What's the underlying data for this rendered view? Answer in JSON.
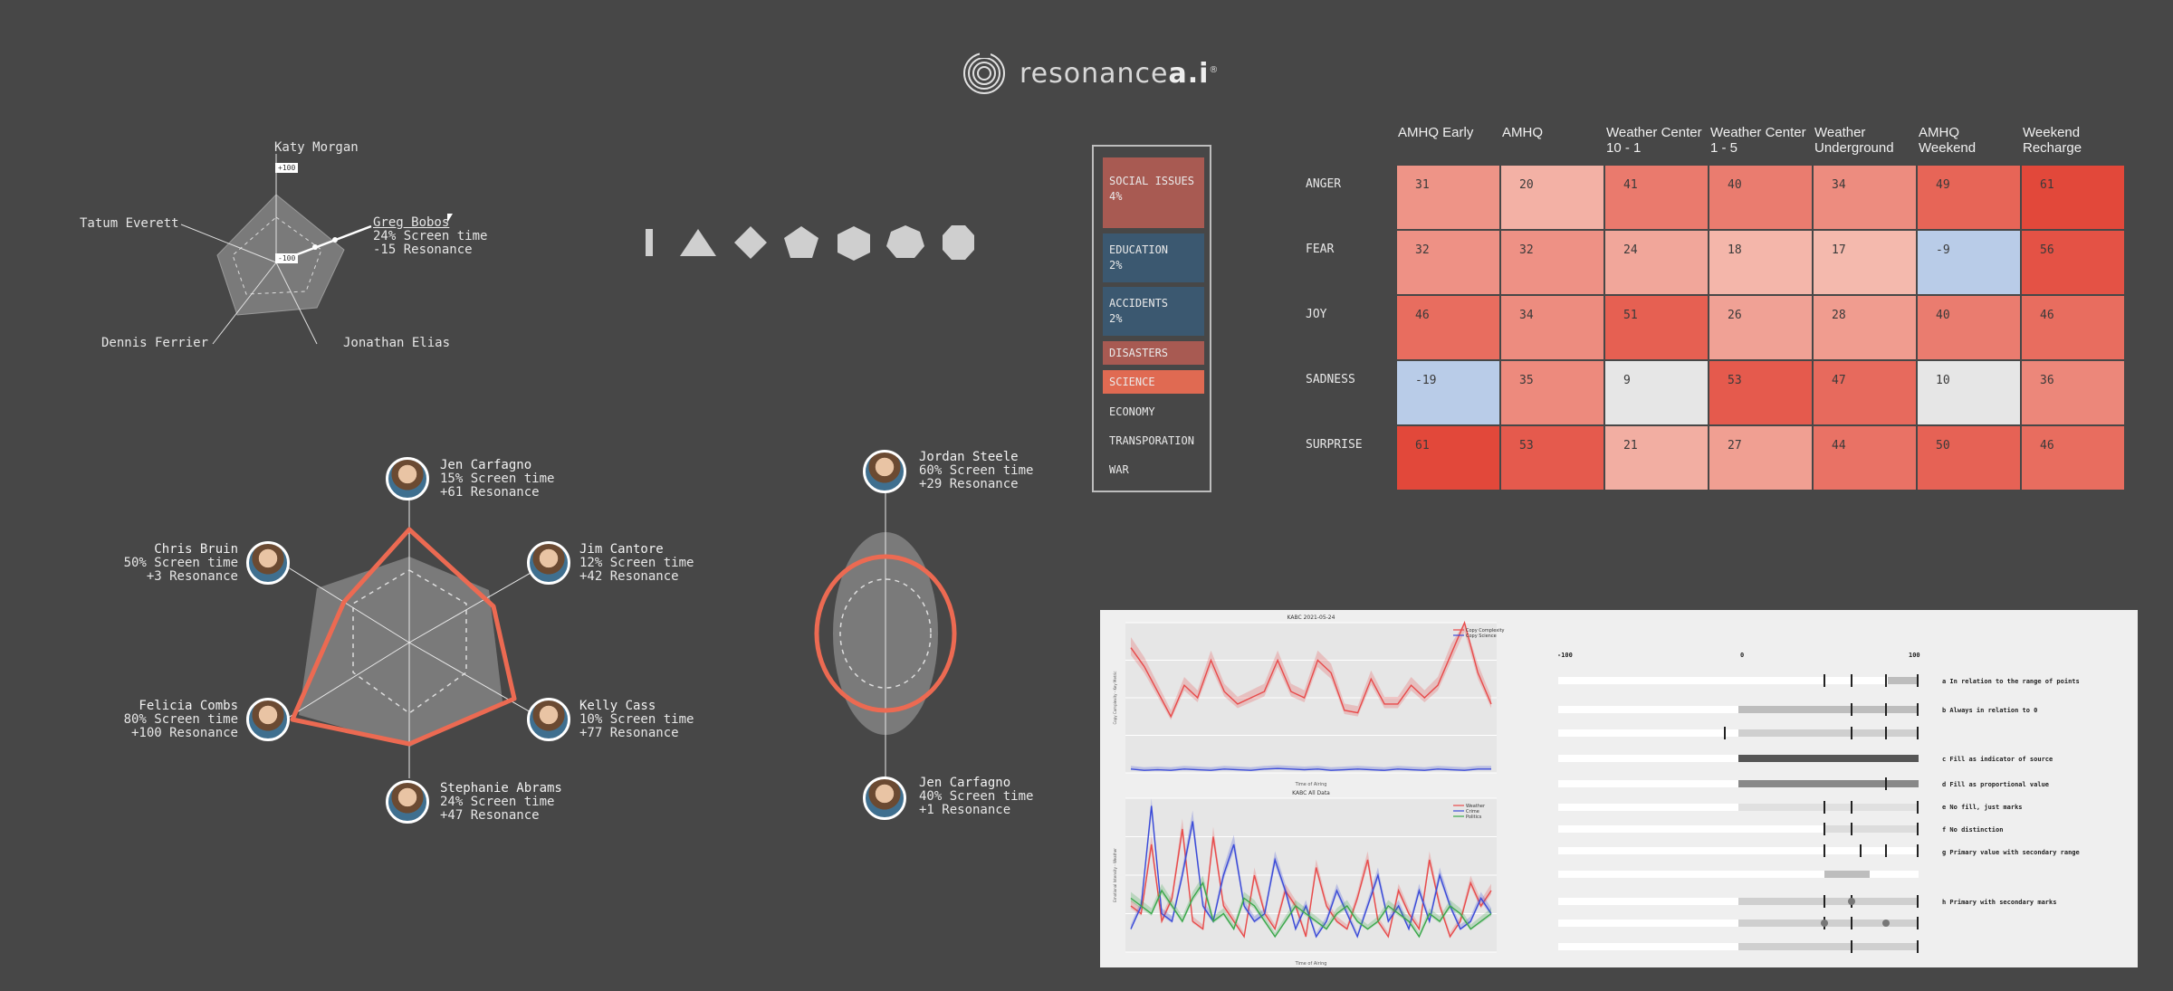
{
  "brand": {
    "name_light": "resonance",
    "name_bold": "a.i",
    "mark": "®"
  },
  "small_radar": {
    "scale_top": "+100",
    "scale_bottom": "-100",
    "names": [
      "Katy Morgan",
      "Greg Bobos",
      "Jonathan Elias",
      "Dennis Ferrier",
      "Tatum Everett"
    ],
    "selected": {
      "name": "Greg Bobos",
      "screen": "24% Screen time",
      "resonance": "-15 Resonance"
    }
  },
  "shapes": [
    "line",
    "triangle",
    "diamond",
    "pentagon",
    "hexagon",
    "heptagon",
    "octagon"
  ],
  "big_radar": {
    "people": [
      {
        "name": "Jen Carfagno",
        "screen": "15% Screen time",
        "resonance": "+61 Resonance"
      },
      {
        "name": "Jim Cantore",
        "screen": "12% Screen time",
        "resonance": "+42 Resonance"
      },
      {
        "name": "Kelly Cass",
        "screen": "10% Screen time",
        "resonance": "+77 Resonance"
      },
      {
        "name": "Stephanie Abrams",
        "screen": "24% Screen time",
        "resonance": "+47 Resonance"
      },
      {
        "name": "Felicia Combs",
        "screen": "80% Screen time",
        "resonance": "+100 Resonance"
      },
      {
        "name": "Chris Bruin",
        "screen": "50% Screen time",
        "resonance": "+3 Resonance"
      }
    ]
  },
  "two_radar": {
    "people": [
      {
        "name": "Jordan Steele",
        "screen": "60% Screen time",
        "resonance": "+29 Resonance"
      },
      {
        "name": "Jen Carfagno",
        "screen": "40% Screen time",
        "resonance": "+1 Resonance"
      }
    ]
  },
  "topics": [
    {
      "label": "SOCIAL ISSUES",
      "pct": "4%",
      "color": "#a85a52"
    },
    {
      "label": "EDUCATION",
      "pct": "2%",
      "color": "#3b5870"
    },
    {
      "label": "ACCIDENTS",
      "pct": "2%",
      "color": "#3b5870"
    },
    {
      "label": "DISASTERS",
      "pct": "",
      "color": "#a85a52"
    },
    {
      "label": "SCIENCE",
      "pct": "",
      "color": "#e06a52"
    },
    {
      "label": "ECONOMY",
      "pct": "",
      "color": ""
    },
    {
      "label": "TRANSPORATION",
      "pct": "",
      "color": ""
    },
    {
      "label": "WAR",
      "pct": "",
      "color": ""
    }
  ],
  "heatmap": {
    "columns": [
      [
        "AMHQ Early"
      ],
      [
        "AMHQ"
      ],
      [
        "Weather Center",
        "10 - 1"
      ],
      [
        "Weather Center",
        "1 - 5"
      ],
      [
        "Weather",
        "Underground"
      ],
      [
        "AMHQ",
        "Weekend"
      ],
      [
        "Weekend",
        "Recharge"
      ]
    ],
    "rows": [
      "ANGER",
      "FEAR",
      "JOY",
      "SADNESS",
      "SURPRISE"
    ],
    "values": [
      [
        31,
        20,
        41,
        40,
        34,
        49,
        61
      ],
      [
        32,
        32,
        24,
        18,
        17,
        -9,
        56
      ],
      [
        46,
        34,
        51,
        26,
        28,
        40,
        46
      ],
      [
        -19,
        35,
        9,
        53,
        47,
        10,
        36
      ],
      [
        61,
        53,
        21,
        27,
        44,
        50,
        46
      ]
    ]
  },
  "chart_data": [
    {
      "type": "line",
      "title": "KABC 2021-05-24",
      "xlabel": "Time of Airing",
      "ylabel": "Copy Complexity - Key Metric",
      "ylim": [
        0,
        12
      ],
      "x": [
        0,
        1,
        2,
        3,
        4,
        5,
        6,
        7,
        8,
        9,
        10,
        11,
        12,
        13,
        14,
        15,
        16,
        17,
        18,
        19,
        20,
        21,
        22,
        23,
        24,
        25,
        26,
        27
      ],
      "series": [
        {
          "name": "Copy Complexity",
          "color": "#e84a4a",
          "values": [
            10,
            8.5,
            6.5,
            4.5,
            7,
            6,
            9,
            6.5,
            5.5,
            6,
            6.5,
            9,
            6.5,
            6,
            9,
            8,
            5,
            4.8,
            7.5,
            5.5,
            5.5,
            7,
            6,
            7,
            9.5,
            12,
            8,
            5.5
          ]
        },
        {
          "name": "Copy Science",
          "color": "#3a4ad8",
          "values": [
            0.3,
            0.2,
            0.25,
            0.2,
            0.3,
            0.25,
            0.2,
            0.3,
            0.25,
            0.2,
            0.3,
            0.35,
            0.3,
            0.25,
            0.3,
            0.2,
            0.25,
            0.3,
            0.25,
            0.2,
            0.3,
            0.25,
            0.2,
            0.3,
            0.25,
            0.2,
            0.3,
            0.3
          ]
        }
      ]
    },
    {
      "type": "line",
      "title": "KABC All Data",
      "xlabel": "Time of Airing",
      "ylabel": "Emotional Intensity - Weather",
      "ylim": [
        0,
        1.0
      ],
      "x": [
        0,
        1,
        2,
        3,
        4,
        5,
        6,
        7,
        8,
        9,
        10,
        11,
        12,
        13,
        14,
        15,
        16,
        17,
        18,
        19,
        20,
        21,
        22,
        23,
        24,
        25,
        26,
        27,
        28,
        29,
        30,
        31,
        32,
        33,
        34,
        35
      ],
      "series": [
        {
          "name": "Weather",
          "color": "#e84a4a",
          "values": [
            0.3,
            0.25,
            0.7,
            0.2,
            0.35,
            0.8,
            0.2,
            0.15,
            0.75,
            0.3,
            0.2,
            0.1,
            0.5,
            0.25,
            0.15,
            0.4,
            0.3,
            0.1,
            0.55,
            0.3,
            0.2,
            0.15,
            0.35,
            0.6,
            0.2,
            0.1,
            0.4,
            0.25,
            0.15,
            0.6,
            0.3,
            0.1,
            0.2,
            0.45,
            0.3,
            0.4
          ]
        },
        {
          "name": "Crime",
          "color": "#3a4ad8",
          "values": [
            0.15,
            0.3,
            0.95,
            0.25,
            0.2,
            0.5,
            0.85,
            0.3,
            0.2,
            0.5,
            0.7,
            0.3,
            0.2,
            0.25,
            0.6,
            0.4,
            0.15,
            0.3,
            0.1,
            0.2,
            0.4,
            0.25,
            0.1,
            0.3,
            0.5,
            0.2,
            0.3,
            0.15,
            0.4,
            0.2,
            0.5,
            0.3,
            0.15,
            0.2,
            0.35,
            0.25
          ]
        },
        {
          "name": "Politics",
          "color": "#3aa84a",
          "values": [
            0.35,
            0.3,
            0.25,
            0.4,
            0.3,
            0.2,
            0.35,
            0.45,
            0.2,
            0.25,
            0.15,
            0.35,
            0.3,
            0.2,
            0.1,
            0.2,
            0.3,
            0.25,
            0.2,
            0.15,
            0.25,
            0.3,
            0.2,
            0.15,
            0.2,
            0.3,
            0.25,
            0.2,
            0.1,
            0.25,
            0.2,
            0.3,
            0.25,
            0.15,
            0.2,
            0.25
          ]
        }
      ]
    }
  ],
  "bullets": {
    "scale": [
      "-100",
      "0",
      "100"
    ],
    "labels": [
      "a  In relation to the range of points",
      "b  Always in relation to 0",
      "c  Fill as indicator of source",
      "d  Fill as proportional value",
      "e  No fill, just marks",
      "f  No distinction",
      "g  Primary value with secondary range",
      "h  Primary with secondary marks"
    ]
  }
}
